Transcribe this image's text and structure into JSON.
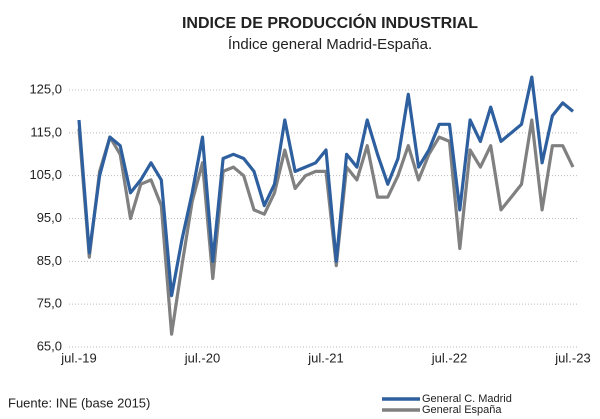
{
  "chart_data": {
    "type": "line",
    "title": "INDICE DE PRODUCCIÓN INDUSTRIAL",
    "subtitle": "Índice general Madrid-España.",
    "source": "Fuente: INE (base 2015)",
    "categories": [
      "jul.-19",
      null,
      null,
      null,
      null,
      null,
      null,
      null,
      null,
      null,
      null,
      null,
      "jul.-20",
      null,
      null,
      null,
      null,
      null,
      null,
      null,
      null,
      null,
      null,
      null,
      "jul.-21",
      null,
      null,
      null,
      null,
      null,
      null,
      null,
      null,
      null,
      null,
      null,
      "jul.-22",
      null,
      null,
      null,
      null,
      null,
      null,
      null,
      null,
      null,
      null,
      null,
      "jul.-23"
    ],
    "series": [
      {
        "name": "General C. Madrid",
        "color": "#2e5f9e",
        "values": [
          118,
          87,
          105,
          114,
          112,
          101,
          104,
          108,
          104,
          77,
          90,
          101,
          114,
          85,
          109,
          110,
          109,
          106,
          98,
          103,
          118,
          106,
          107,
          108,
          111,
          85,
          110,
          107,
          118,
          110,
          103,
          109,
          124,
          107,
          111,
          117,
          117,
          97,
          118,
          113,
          121,
          113,
          115,
          117,
          128,
          108,
          119,
          122,
          120
        ]
      },
      {
        "name": "General España",
        "color": "#808080",
        "values": [
          116,
          86,
          106,
          114,
          110,
          95,
          103,
          104,
          98,
          68,
          84,
          99,
          108,
          81,
          106,
          107,
          105,
          97,
          96,
          101,
          111,
          102,
          105,
          106,
          106,
          84,
          107,
          104,
          112,
          100,
          100,
          105,
          112,
          104,
          110,
          114,
          113,
          88,
          111,
          107,
          112,
          97,
          100,
          103,
          118,
          97,
          112,
          112,
          107
        ]
      }
    ],
    "ylim": [
      65,
      125
    ],
    "yticks": [
      {
        "value": 65,
        "label": "65,0"
      },
      {
        "value": 75,
        "label": "75,0"
      },
      {
        "value": 85,
        "label": "85,0"
      },
      {
        "value": 95,
        "label": "95,0"
      },
      {
        "value": 105,
        "label": "105,0"
      },
      {
        "value": 115,
        "label": "115,0"
      },
      {
        "value": 125,
        "label": "125,0"
      }
    ],
    "grid": true
  }
}
